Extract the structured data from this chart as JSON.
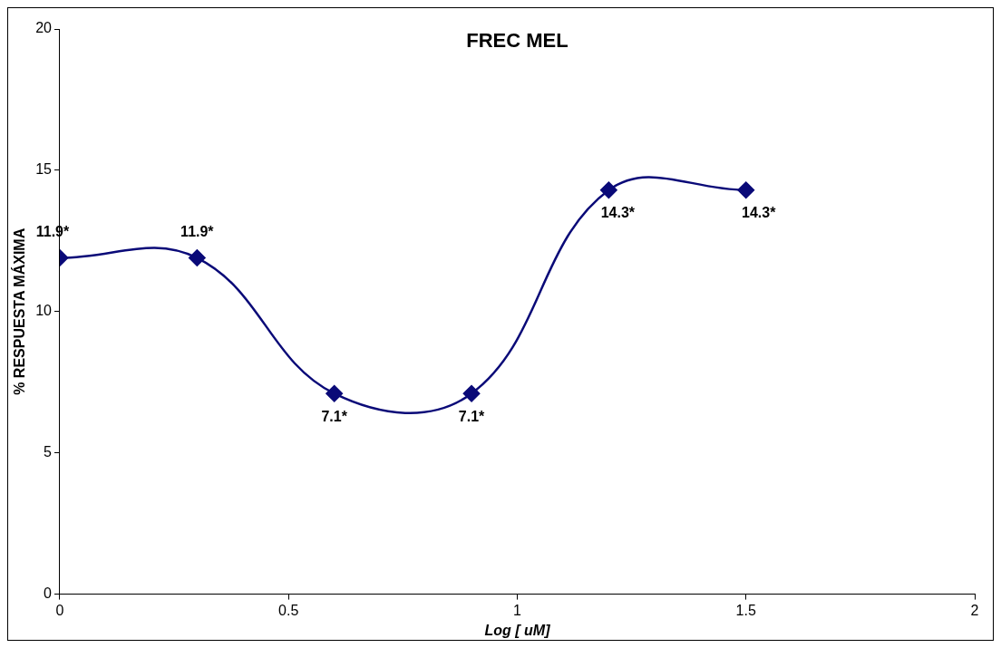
{
  "chart_data": {
    "type": "line",
    "title": "FREC MEL",
    "xlabel": "Log [ uM]",
    "ylabel": "% RESPUESTA MÁXIMA",
    "x": [
      0,
      0.3,
      0.6,
      0.9,
      1.2,
      1.5
    ],
    "series": [
      {
        "color": "#0a0a78",
        "values": [
          11.9,
          11.9,
          7.1,
          7.1,
          14.3,
          14.3
        ],
        "value_labels": [
          "11.9*",
          "11.9*",
          "7.1*",
          "7.1*",
          "14.3*",
          "14.3*"
        ]
      }
    ],
    "xlim": [
      0,
      2
    ],
    "xticks": [
      0,
      0.5,
      1,
      1.5,
      2
    ],
    "ylim": [
      0,
      20
    ],
    "yticks": [
      0,
      5,
      10,
      15,
      20
    ],
    "grid": false,
    "legend": false,
    "marker": "diamond",
    "line_style": "solid"
  }
}
